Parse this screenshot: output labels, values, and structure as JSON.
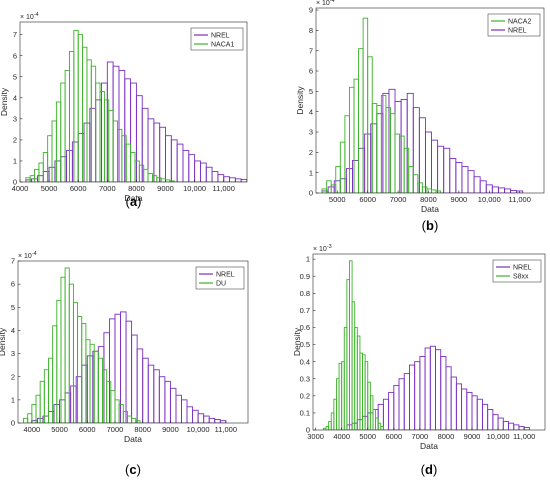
{
  "chart_data": [
    {
      "type": "bar",
      "caption": "(a)",
      "xlabel": "Data",
      "ylabel": "Density",
      "y_exponent": "10^{-4}",
      "xlim": [
        4000,
        11800
      ],
      "ylim": [
        0,
        7.6
      ],
      "xticks": [
        4000,
        5000,
        6000,
        7000,
        8000,
        9000,
        10000,
        11000
      ],
      "xtick_labels": [
        "4000",
        "5000",
        "6000",
        "7000",
        "8000",
        "9000",
        "10,000",
        "11,000"
      ],
      "yticks": [
        0,
        1,
        2,
        3,
        4,
        5,
        6,
        7
      ],
      "legend": [
        "NREL",
        "NACA1"
      ],
      "legend_position": "top-right",
      "series": [
        {
          "name": "NREL",
          "color": "#7b2fbf",
          "bin_start": 4200,
          "bin_width": 200,
          "values": [
            0.1,
            0.15,
            0.3,
            0.5,
            0.7,
            1.0,
            1.2,
            1.5,
            1.9,
            2.3,
            2.8,
            3.5,
            3.9,
            4.7,
            5.7,
            5.5,
            5.3,
            4.9,
            4.7,
            4.1,
            3.5,
            3.0,
            2.8,
            2.6,
            2.2,
            2.0,
            1.8,
            1.5,
            1.3,
            1.0,
            0.9,
            0.7,
            0.5,
            0.35,
            0.25,
            0.2,
            0.15,
            0.12,
            0.1
          ]
        },
        {
          "name": "NACA1",
          "color": "#3cb329",
          "bin_start": 4200,
          "bin_width": 150,
          "values": [
            0.2,
            0.3,
            0.6,
            0.9,
            1.4,
            2.2,
            2.9,
            3.8,
            4.7,
            5.3,
            6.2,
            7.2,
            7.0,
            6.4,
            5.8,
            5.5,
            4.7,
            4.3,
            3.9,
            3.4,
            2.9,
            2.5,
            2.2,
            1.8,
            1.4,
            1.0,
            0.8,
            0.6,
            0.4,
            0.3,
            0.2,
            0.15,
            0.1,
            0.05
          ]
        }
      ]
    },
    {
      "type": "bar",
      "caption": "(b)",
      "xlabel": "Data",
      "ylabel": "Density",
      "y_exponent": "10^{-4}",
      "xlim": [
        4300,
        11800
      ],
      "ylim": [
        0,
        9.1
      ],
      "xticks": [
        5000,
        6000,
        7000,
        8000,
        9000,
        10000,
        11000
      ],
      "xtick_labels": [
        "5000",
        "6000",
        "7000",
        "8000",
        "9000",
        "10,000",
        "11,000"
      ],
      "yticks": [
        0,
        1,
        2,
        3,
        4,
        5,
        6,
        7,
        8,
        9
      ],
      "legend": [
        "NACA2",
        "NREL"
      ],
      "legend_position": "top-right",
      "series": [
        {
          "name": "NREL",
          "color": "#7b2fbf",
          "bin_start": 4500,
          "bin_width": 200,
          "values": [
            0.1,
            0.3,
            0.6,
            0.7,
            1.2,
            1.6,
            2.2,
            2.9,
            3.4,
            3.9,
            4.9,
            5.1,
            4.5,
            4.6,
            4.9,
            4.2,
            3.7,
            3.0,
            2.6,
            2.3,
            2.2,
            1.7,
            1.5,
            1.3,
            1.1,
            0.8,
            0.6,
            0.4,
            0.3,
            0.25,
            0.2,
            0.12,
            0.1
          ]
        },
        {
          "name": "NACA2",
          "color": "#3cb329",
          "bin_start": 4500,
          "bin_width": 150,
          "values": [
            0.2,
            0.6,
            0.4,
            1.3,
            2.5,
            3.8,
            5.2,
            5.6,
            7.1,
            8.6,
            6.7,
            4.4,
            4.3,
            4.8,
            4.2,
            3.9,
            2.9,
            2.8,
            2.2,
            1.3,
            0.9,
            0.5,
            0.3,
            0.2,
            0.15,
            0.1
          ]
        }
      ]
    },
    {
      "type": "bar",
      "caption": "(c)",
      "xlabel": "Data",
      "ylabel": "Density",
      "y_exponent": "10^{-4}",
      "xlim": [
        3500,
        11800
      ],
      "ylim": [
        0,
        7.0
      ],
      "xticks": [
        4000,
        5000,
        6000,
        7000,
        8000,
        9000,
        10000,
        11000
      ],
      "xtick_labels": [
        "4000",
        "5000",
        "6000",
        "7000",
        "8000",
        "9000",
        "10,000",
        "11,000"
      ],
      "yticks": [
        0,
        1,
        2,
        3,
        4,
        5,
        6,
        7
      ],
      "legend": [
        "NREL",
        "DU"
      ],
      "legend_position": "top-right",
      "series": [
        {
          "name": "NREL",
          "color": "#7b2fbf",
          "bin_start": 4000,
          "bin_width": 200,
          "values": [
            0.1,
            0.2,
            0.3,
            0.5,
            0.8,
            1.0,
            1.3,
            1.6,
            2.0,
            2.5,
            2.9,
            3.1,
            3.3,
            3.9,
            4.5,
            4.7,
            4.8,
            4.4,
            3.8,
            3.2,
            2.8,
            2.5,
            2.3,
            2.0,
            1.8,
            1.5,
            1.2,
            1.0,
            0.7,
            0.55,
            0.4,
            0.3,
            0.2,
            0.15,
            0.1
          ]
        },
        {
          "name": "DU",
          "color": "#3cb329",
          "bin_start": 3700,
          "bin_width": 150,
          "values": [
            0.2,
            0.4,
            0.8,
            1.2,
            1.8,
            2.3,
            2.8,
            4.2,
            5.3,
            6.3,
            6.7,
            6.0,
            5.2,
            4.6,
            4.3,
            3.6,
            3.4,
            3.1,
            2.8,
            2.3,
            1.8,
            1.4,
            1.0,
            0.8,
            0.5,
            0.3,
            0.2,
            0.1
          ]
        }
      ]
    },
    {
      "type": "bar",
      "caption": "(d)",
      "xlabel": "Data",
      "ylabel": "Density",
      "y_exponent": "10^{-3}",
      "xlim": [
        2900,
        11800
      ],
      "ylim": [
        0,
        1.03
      ],
      "xticks": [
        3000,
        4000,
        5000,
        6000,
        7000,
        8000,
        9000,
        10000,
        11000
      ],
      "xtick_labels": [
        "3000",
        "4000",
        "5000",
        "6000",
        "7000",
        "8000",
        "9000",
        "10,000",
        "11,000"
      ],
      "yticks": [
        0,
        0.1,
        0.2,
        0.3,
        0.4,
        0.5,
        0.6,
        0.7,
        0.8,
        0.9,
        1
      ],
      "ytick_labels": [
        "0",
        "0.1",
        "0.2",
        "0.3",
        "0.4",
        "0.5",
        "0.6",
        "0.7",
        "0.8",
        "0.9",
        "1"
      ],
      "legend": [
        "NREL",
        "S8xx"
      ],
      "legend_position": "top-right",
      "series": [
        {
          "name": "NREL",
          "color": "#7b2fbf",
          "bin_start": 4200,
          "bin_width": 200,
          "values": [
            0.03,
            0.04,
            0.06,
            0.08,
            0.1,
            0.12,
            0.15,
            0.18,
            0.22,
            0.26,
            0.3,
            0.33,
            0.38,
            0.4,
            0.43,
            0.48,
            0.49,
            0.47,
            0.43,
            0.37,
            0.31,
            0.27,
            0.24,
            0.22,
            0.2,
            0.18,
            0.15,
            0.12,
            0.09,
            0.07,
            0.05,
            0.04,
            0.03,
            0.02,
            0.015
          ]
        },
        {
          "name": "S8xx",
          "color": "#3cb329",
          "bin_start": 3300,
          "bin_width": 100,
          "values": [
            0.01,
            0.02,
            0.05,
            0.1,
            0.18,
            0.3,
            0.39,
            0.4,
            0.6,
            0.88,
            0.99,
            0.75,
            0.6,
            0.55,
            0.45,
            0.44,
            0.4,
            0.28,
            0.2,
            0.12,
            0.07,
            0.04,
            0.02
          ]
        }
      ]
    }
  ]
}
